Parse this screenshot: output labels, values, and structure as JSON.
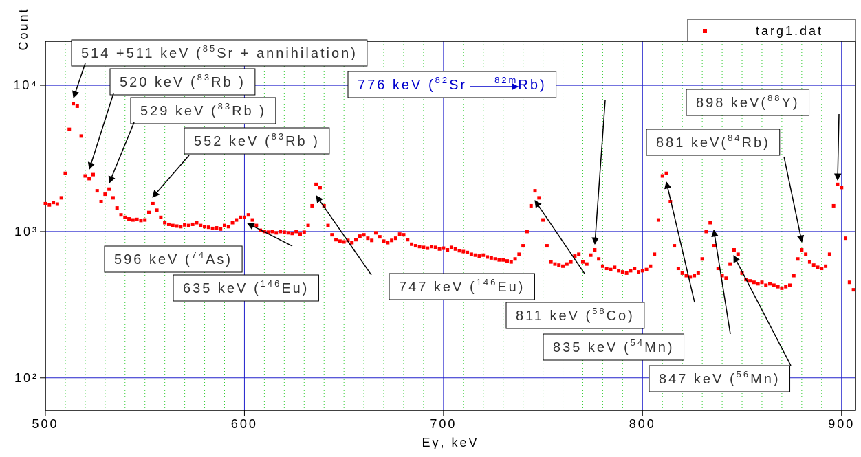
{
  "chart_data": {
    "type": "scatter",
    "xlabel": "Eγ, keV",
    "ylabel": "Count",
    "xlim": [
      500,
      907
    ],
    "ylim": [
      60,
      20000
    ],
    "yscale": "log",
    "grid": true,
    "xticks": [
      500,
      600,
      700,
      800,
      900
    ],
    "xminor_ticks": [
      510,
      520,
      530,
      540,
      550,
      560,
      570,
      580,
      590,
      610,
      620,
      630,
      640,
      650,
      660,
      670,
      680,
      690,
      710,
      720,
      730,
      740,
      750,
      760,
      770,
      780,
      790,
      810,
      820,
      830,
      840,
      850,
      860,
      870,
      880,
      890
    ],
    "yticks": [
      {
        "value": 100,
        "label": "10²"
      },
      {
        "value": 1000,
        "label": "10³"
      },
      {
        "value": 10000,
        "label": "10⁴"
      }
    ],
    "legend": "upper right",
    "series": [
      {
        "name": "targ1.dat",
        "color": "#ff0000",
        "x": [
          500,
          502,
          504,
          506,
          508,
          510,
          512,
          514,
          516,
          518,
          520,
          522,
          524,
          526,
          528,
          530,
          532,
          534,
          536,
          538,
          540,
          542,
          544,
          546,
          548,
          550,
          552,
          554,
          556,
          558,
          560,
          562,
          564,
          566,
          568,
          570,
          572,
          574,
          576,
          578,
          580,
          582,
          584,
          586,
          588,
          590,
          592,
          594,
          596,
          598,
          600,
          602,
          604,
          606,
          608,
          610,
          612,
          614,
          616,
          618,
          620,
          622,
          624,
          626,
          628,
          630,
          632,
          634,
          636,
          638,
          640,
          642,
          644,
          646,
          648,
          650,
          652,
          654,
          656,
          658,
          660,
          662,
          664,
          666,
          668,
          670,
          672,
          674,
          676,
          678,
          680,
          682,
          684,
          686,
          688,
          690,
          692,
          694,
          696,
          698,
          700,
          702,
          704,
          706,
          708,
          710,
          712,
          714,
          716,
          718,
          720,
          722,
          724,
          726,
          728,
          730,
          732,
          734,
          736,
          738,
          740,
          742,
          744,
          746,
          748,
          750,
          752,
          754,
          756,
          758,
          760,
          762,
          764,
          766,
          768,
          770,
          772,
          774,
          776,
          778,
          780,
          782,
          784,
          786,
          788,
          790,
          792,
          794,
          796,
          798,
          800,
          802,
          804,
          806,
          808,
          810,
          812,
          814,
          816,
          818,
          820,
          822,
          824,
          826,
          828,
          830,
          832,
          834,
          836,
          838,
          840,
          842,
          844,
          846,
          848,
          850,
          852,
          854,
          856,
          858,
          860,
          862,
          864,
          866,
          868,
          870,
          872,
          874,
          876,
          878,
          880,
          882,
          884,
          886,
          888,
          890,
          892,
          894,
          896,
          898,
          900,
          902,
          904,
          906
        ],
        "values": [
          1550,
          1520,
          1580,
          1540,
          1700,
          2500,
          5000,
          7500,
          7200,
          4500,
          2400,
          2300,
          2450,
          1900,
          1600,
          1800,
          1950,
          1700,
          1450,
          1300,
          1250,
          1220,
          1200,
          1210,
          1190,
          1200,
          1350,
          1550,
          1400,
          1250,
          1150,
          1120,
          1100,
          1090,
          1080,
          1110,
          1100,
          1120,
          1150,
          1100,
          1080,
          1070,
          1050,
          1060,
          1040,
          1100,
          1080,
          1150,
          1200,
          1250,
          1250,
          1300,
          1200,
          1100,
          1020,
          1000,
          990,
          1000,
          980,
          1000,
          990,
          980,
          970,
          1000,
          960,
          990,
          1100,
          1500,
          2100,
          2000,
          1500,
          1100,
          950,
          880,
          860,
          850,
          870,
          840,
          880,
          930,
          950,
          900,
          870,
          980,
          920,
          860,
          840,
          870,
          900,
          960,
          950,
          880,
          820,
          800,
          790,
          780,
          770,
          790,
          780,
          760,
          770,
          750,
          780,
          760,
          740,
          730,
          720,
          700,
          690,
          680,
          690,
          670,
          660,
          650,
          640,
          640,
          630,
          620,
          650,
          700,
          800,
          1000,
          1500,
          1900,
          1700,
          1200,
          800,
          620,
          600,
          590,
          580,
          600,
          620,
          680,
          700,
          620,
          600,
          690,
          750,
          650,
          580,
          560,
          550,
          570,
          540,
          530,
          520,
          540,
          560,
          530,
          540,
          550,
          580,
          700,
          1200,
          2400,
          2500,
          1600,
          800,
          560,
          520,
          500,
          490,
          500,
          520,
          650,
          1000,
          1150,
          800,
          560,
          500,
          480,
          600,
          750,
          700,
          520,
          470,
          460,
          450,
          440,
          450,
          430,
          440,
          430,
          420,
          410,
          420,
          430,
          500,
          650,
          750,
          700,
          620,
          590,
          570,
          560,
          580,
          700,
          1500,
          2100,
          2000,
          900,
          450,
          400
        ]
      }
    ],
    "annotations": [
      {
        "parts": [
          "514 +511 keV (",
          "85",
          "Sr + annihilation)"
        ]
      },
      {
        "parts": [
          "520 keV (",
          "83",
          "Rb )"
        ]
      },
      {
        "parts": [
          "529 keV (",
          "83",
          "Rb )"
        ]
      },
      {
        "parts": [
          "552 keV (",
          "83",
          "Rb )"
        ]
      },
      {
        "parts": [
          "596 keV (",
          "74",
          "As)"
        ]
      },
      {
        "parts": [
          "635 keV (",
          "146",
          "Eu)"
        ]
      },
      {
        "parts": [
          "776 keV (",
          "82",
          "Sr",
          "82m",
          "Rb)"
        ]
      },
      {
        "parts": [
          "747 keV (",
          "146",
          "Eu)"
        ]
      },
      {
        "parts": [
          "898 keV(",
          "88",
          "Y)"
        ]
      },
      {
        "parts": [
          "881 keV(",
          "84",
          "Rb)"
        ]
      },
      {
        "parts": [
          "811 keV (",
          "58",
          "Co)"
        ]
      },
      {
        "parts": [
          "835 keV (",
          "54",
          "Mn)"
        ]
      },
      {
        "parts": [
          "847 keV (",
          "56",
          "Mn)"
        ]
      }
    ]
  }
}
